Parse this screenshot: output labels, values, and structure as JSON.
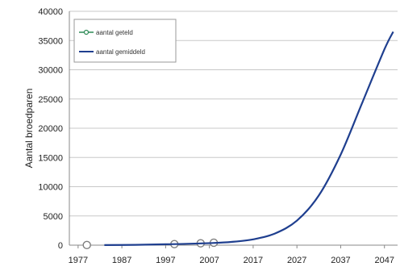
{
  "chart_data": {
    "type": "line",
    "ylabel": "Aantal broedparen",
    "xlim": [
      1975,
      2050
    ],
    "ylim": [
      0,
      40000
    ],
    "x_ticks": [
      "1977",
      "1987",
      "1997",
      "2007",
      "2017",
      "2027",
      "2037",
      "2047"
    ],
    "y_ticks": [
      "0",
      "5000",
      "10000",
      "15000",
      "20000",
      "25000",
      "30000",
      "35000",
      "40000"
    ],
    "grid": "horizontal",
    "legend_position": "top-left",
    "series": [
      {
        "name": "aantal geteld",
        "style": "markers",
        "color": "#7f7f7f",
        "x": [
          1979,
          1999,
          2005,
          2008
        ],
        "y": [
          20,
          180,
          320,
          420
        ]
      },
      {
        "name": "aantal gemiddeld",
        "style": "line",
        "color": "#1f3f8f",
        "x": [
          1983,
          1990,
          1997,
          2002,
          2007,
          2012,
          2017,
          2022,
          2027,
          2032,
          2037,
          2042,
          2047,
          2049
        ],
        "y": [
          10,
          60,
          150,
          230,
          350,
          550,
          1000,
          2000,
          4200,
          8500,
          15500,
          24500,
          33500,
          36500
        ]
      }
    ]
  }
}
